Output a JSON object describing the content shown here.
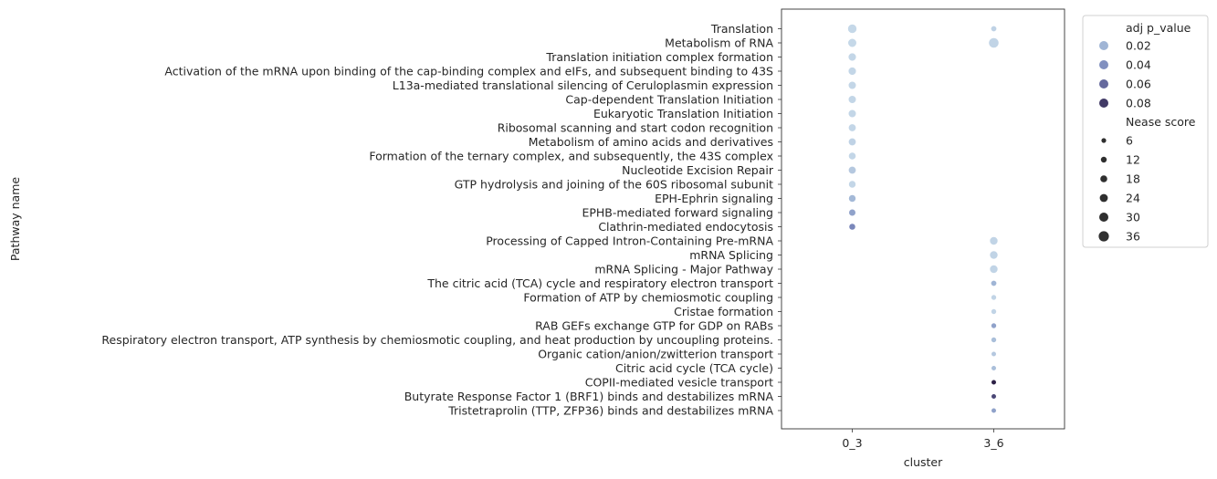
{
  "chart_data": {
    "type": "scatter",
    "xlabel": "cluster",
    "ylabel": "Pathway name",
    "x_categories": [
      "0_3",
      "3_6"
    ],
    "y_categories": [
      "Translation",
      "Metabolism of RNA",
      "Translation initiation complex formation",
      "Activation of the mRNA upon binding of the cap-binding complex and eIFs, and subsequent binding to 43S",
      "L13a-mediated translational silencing of Ceruloplasmin expression",
      "Cap-dependent Translation Initiation",
      "Eukaryotic Translation Initiation",
      "Ribosomal scanning and start codon recognition",
      "Metabolism of amino acids and derivatives",
      "Formation of the ternary complex, and subsequently, the 43S complex",
      "Nucleotide Excision Repair",
      "GTP hydrolysis and joining of the 60S ribosomal subunit",
      "EPH-Ephrin signaling",
      "EPHB-mediated forward signaling",
      "Clathrin-mediated endocytosis",
      "Processing of Capped Intron-Containing Pre-mRNA",
      "mRNA Splicing",
      "mRNA Splicing - Major Pathway",
      "The citric acid (TCA) cycle and respiratory electron transport",
      "Formation of ATP by chemiosmotic coupling",
      "Cristae formation",
      "RAB GEFs exchange GTP for GDP on RABs",
      "Respiratory electron transport, ATP synthesis by chemiosmotic coupling, and heat production by uncoupling proteins.",
      "Organic cation/anion/zwitterion transport",
      "Citric acid cycle (TCA cycle)",
      "COPII-mediated vesicle transport",
      "Butyrate Response Factor 1 (BRF1) binds and destabilizes mRNA",
      "Tristetraprolin (TTP, ZFP36) binds and destabilizes mRNA"
    ],
    "points": [
      {
        "x": "0_3",
        "y": "Translation",
        "adj_p": 0.002,
        "nes": 30
      },
      {
        "x": "0_3",
        "y": "Metabolism of RNA",
        "adj_p": 0.002,
        "nes": 28
      },
      {
        "x": "0_3",
        "y": "Translation initiation complex formation",
        "adj_p": 0.003,
        "nes": 24
      },
      {
        "x": "0_3",
        "y": "Activation of the mRNA upon binding of the cap-binding complex and eIFs, and subsequent binding to 43S",
        "adj_p": 0.003,
        "nes": 24
      },
      {
        "x": "0_3",
        "y": "L13a-mediated translational silencing of Ceruloplasmin expression",
        "adj_p": 0.003,
        "nes": 23
      },
      {
        "x": "0_3",
        "y": "Cap-dependent Translation Initiation",
        "adj_p": 0.003,
        "nes": 23
      },
      {
        "x": "0_3",
        "y": "Eukaryotic Translation Initiation",
        "adj_p": 0.003,
        "nes": 23
      },
      {
        "x": "0_3",
        "y": "Ribosomal scanning and start codon recognition",
        "adj_p": 0.003,
        "nes": 22
      },
      {
        "x": "0_3",
        "y": "Metabolism of amino acids and derivatives",
        "adj_p": 0.005,
        "nes": 22
      },
      {
        "x": "0_3",
        "y": "Formation of the ternary complex, and subsequently, the 43S complex",
        "adj_p": 0.003,
        "nes": 21
      },
      {
        "x": "0_3",
        "y": "Nucleotide Excision Repair",
        "adj_p": 0.01,
        "nes": 22
      },
      {
        "x": "0_3",
        "y": "GTP hydrolysis and joining of the 60S ribosomal subunit",
        "adj_p": 0.003,
        "nes": 20
      },
      {
        "x": "0_3",
        "y": "EPH-Ephrin signaling",
        "adj_p": 0.018,
        "nes": 20
      },
      {
        "x": "0_3",
        "y": "EPHB-mediated forward signaling",
        "adj_p": 0.03,
        "nes": 18
      },
      {
        "x": "0_3",
        "y": "Clathrin-mediated endocytosis",
        "adj_p": 0.045,
        "nes": 16
      },
      {
        "x": "3_6",
        "y": "Translation",
        "adj_p": 0.005,
        "nes": 12
      },
      {
        "x": "3_6",
        "y": "Metabolism of RNA",
        "adj_p": 0.004,
        "nes": 36
      },
      {
        "x": "3_6",
        "y": "Processing of Capped Intron-Containing Pre-mRNA",
        "adj_p": 0.004,
        "nes": 25
      },
      {
        "x": "3_6",
        "y": "mRNA Splicing",
        "adj_p": 0.004,
        "nes": 25
      },
      {
        "x": "3_6",
        "y": "mRNA Splicing - Major Pathway",
        "adj_p": 0.004,
        "nes": 25
      },
      {
        "x": "3_6",
        "y": "The citric acid (TCA) cycle and respiratory electron transport",
        "adj_p": 0.02,
        "nes": 12
      },
      {
        "x": "3_6",
        "y": "Formation of ATP by chemiosmotic coupling",
        "adj_p": 0.004,
        "nes": 10
      },
      {
        "x": "3_6",
        "y": "Cristae formation",
        "adj_p": 0.004,
        "nes": 10
      },
      {
        "x": "3_6",
        "y": "RAB GEFs exchange GTP for GDP on RABs",
        "adj_p": 0.03,
        "nes": 10
      },
      {
        "x": "3_6",
        "y": "Respiratory electron transport, ATP synthesis by chemiosmotic coupling, and heat production by uncoupling proteins.",
        "adj_p": 0.015,
        "nes": 10
      },
      {
        "x": "3_6",
        "y": "Organic cation/anion/zwitterion transport",
        "adj_p": 0.01,
        "nes": 8
      },
      {
        "x": "3_6",
        "y": "Citric acid cycle (TCA cycle)",
        "adj_p": 0.015,
        "nes": 8
      },
      {
        "x": "3_6",
        "y": "COPII-mediated vesicle transport",
        "adj_p": 0.09,
        "nes": 8
      },
      {
        "x": "3_6",
        "y": "Butyrate Response Factor 1 (BRF1) binds and destabilizes mRNA",
        "adj_p": 0.075,
        "nes": 8
      },
      {
        "x": "3_6",
        "y": "Tristetraprolin (TTP, ZFP36) binds and destabilizes mRNA",
        "adj_p": 0.03,
        "nes": 8
      }
    ],
    "hue": {
      "title": "adj p_value",
      "range": [
        0.0,
        0.09
      ],
      "color_stops": [
        "#c9dcea",
        "#9bb0d2",
        "#7a87ba",
        "#5a5a8e",
        "#2d2146"
      ],
      "legend_values": [
        0.02,
        0.04,
        0.06,
        0.08
      ],
      "legend_labels": [
        "0.02",
        "0.04",
        "0.06",
        "0.08"
      ]
    },
    "size": {
      "title": "Nease score",
      "range": [
        6,
        36
      ],
      "legend_values": [
        6,
        12,
        18,
        24,
        30,
        36
      ],
      "legend_labels": [
        "6",
        "12",
        "18",
        "24",
        "30",
        "36"
      ],
      "legend_color": "#2f2f2f"
    },
    "legend_placement": "outside-right",
    "grid": false
  }
}
